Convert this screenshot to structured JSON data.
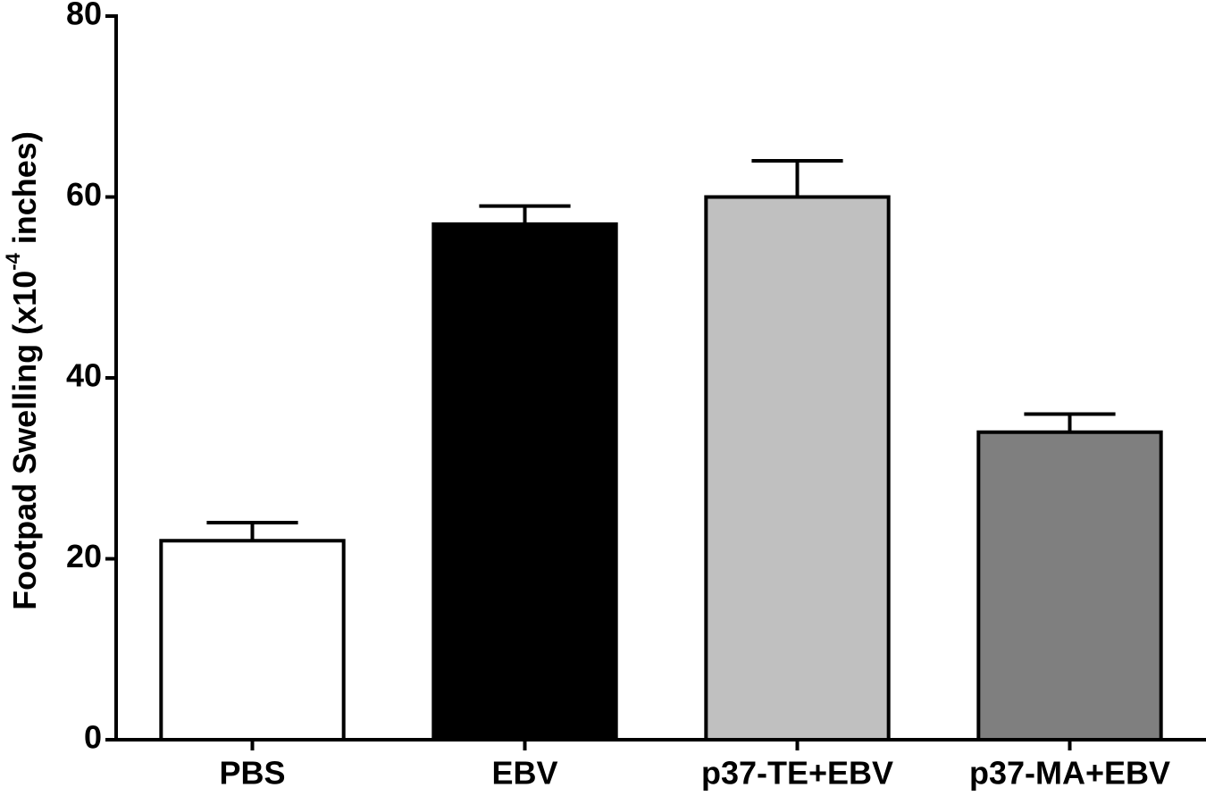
{
  "chart_data": {
    "type": "bar",
    "ylabel": [
      "Footpad Swelling (x10",
      "-4",
      " inches)"
    ],
    "categories": [
      "PBS",
      "EBV",
      "p37-TE+EBV",
      "p37-MA+EBV"
    ],
    "values": [
      22,
      57,
      60,
      34
    ],
    "errors": [
      2,
      2,
      4,
      2
    ],
    "colors": [
      "#ffffff",
      "#000000",
      "#c0c0c0",
      "#7f7f7f"
    ],
    "ylim": [
      0,
      80
    ],
    "yticks": [
      0,
      20,
      40,
      60,
      80
    ]
  }
}
